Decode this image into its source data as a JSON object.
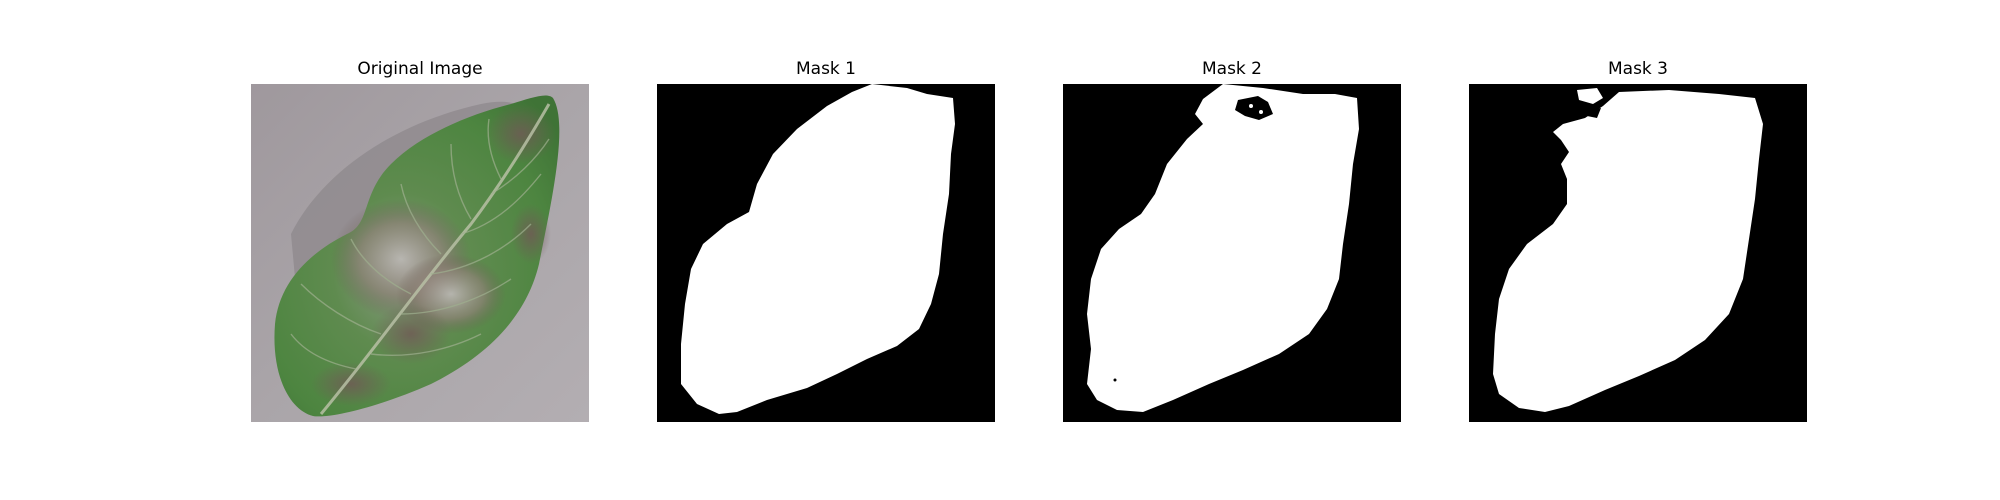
{
  "figure": {
    "panels": [
      {
        "title": "Original Image",
        "kind": "photo",
        "subject": "diseased-green-leaf"
      },
      {
        "title": "Mask 1",
        "kind": "mask"
      },
      {
        "title": "Mask 2",
        "kind": "mask"
      },
      {
        "title": "Mask 3",
        "kind": "mask"
      }
    ]
  },
  "colors": {
    "mask_background": "#000000",
    "mask_foreground": "#ffffff",
    "leaf_green": "#4f8a43",
    "leaf_lesion": "#7a6a5e",
    "table_gray": "#a7a2a6"
  }
}
